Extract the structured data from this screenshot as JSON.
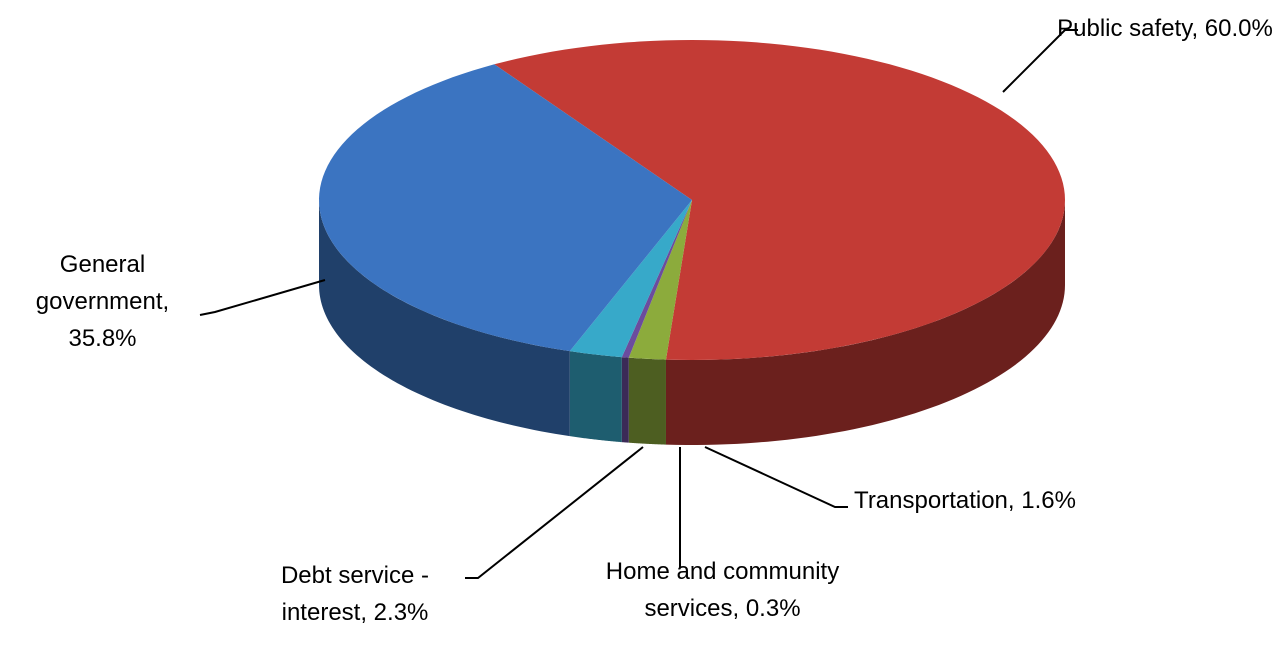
{
  "chart_data": {
    "type": "pie",
    "style": "3d",
    "categories": [
      "Public safety",
      "Transportation",
      "Home and community services",
      "Debt service - interest",
      "General government"
    ],
    "values": [
      60.0,
      1.6,
      0.3,
      2.3,
      35.8
    ],
    "value_labels": [
      "60.0%",
      "1.6%",
      "0.3%",
      "2.3%",
      "35.8%"
    ],
    "colors": [
      "#c33b35",
      "#8cab3c",
      "#6b4c9e",
      "#37a9c9",
      "#3b74c1"
    ]
  }
}
